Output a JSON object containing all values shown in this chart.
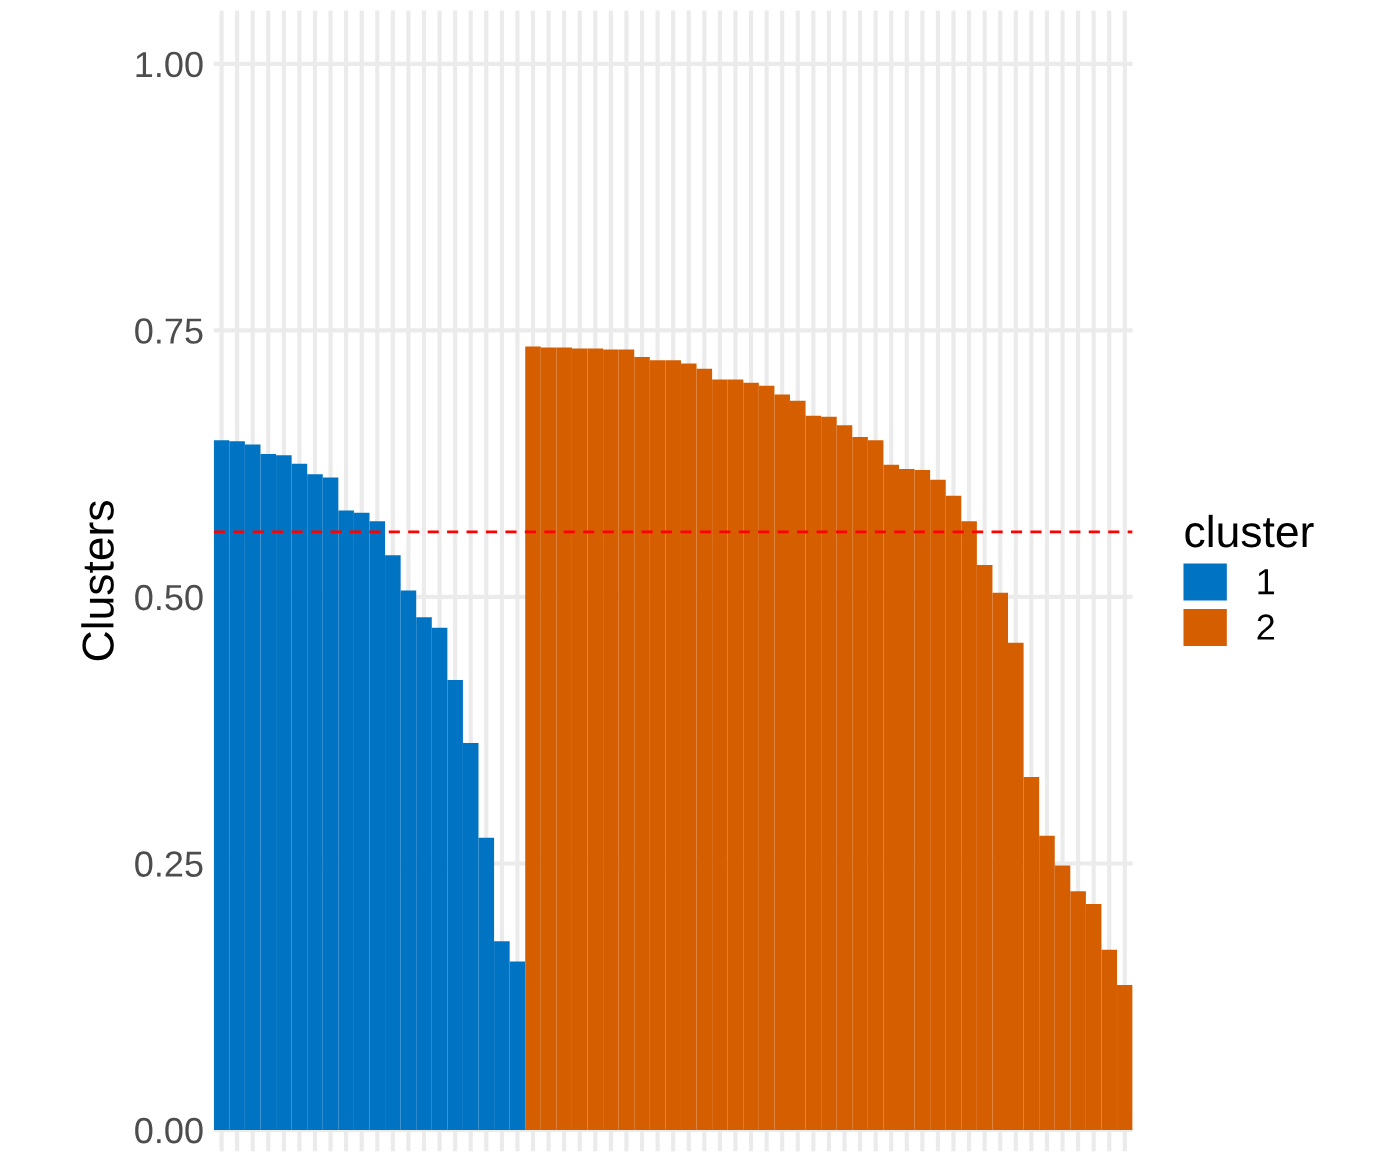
{
  "chart_data": {
    "type": "bar",
    "ylabel": "Clusters",
    "legend_title": "cluster",
    "categories": [
      null,
      null,
      null,
      null,
      null,
      null,
      null,
      null,
      null,
      null,
      null,
      null,
      null,
      null,
      null,
      null,
      null,
      null,
      null,
      null,
      null,
      null,
      null,
      null,
      null,
      null,
      null,
      null,
      null,
      null,
      null,
      null,
      null,
      null,
      null,
      null,
      null,
      null,
      null,
      null,
      null,
      null,
      null,
      null,
      null,
      null,
      null,
      null,
      null,
      null,
      null,
      null,
      null,
      null,
      null,
      null,
      null,
      null,
      null
    ],
    "series": [
      {
        "name": "1",
        "color": "#0073c2",
        "values": [
          0.647,
          0.646,
          0.643,
          0.634,
          0.633,
          0.625,
          0.615,
          0.612,
          0.581,
          0.579,
          0.571,
          0.539,
          0.506,
          0.481,
          0.471,
          0.422,
          0.363,
          0.274,
          0.177,
          0.158,
          null,
          null,
          null,
          null,
          null,
          null,
          null,
          null,
          null,
          null,
          null,
          null,
          null,
          null,
          null,
          null,
          null,
          null,
          null,
          null,
          null,
          null,
          null,
          null,
          null,
          null,
          null,
          null,
          null,
          null,
          null,
          null,
          null,
          null,
          null,
          null,
          null,
          null,
          null
        ]
      },
      {
        "name": "2",
        "color": "#d55e00",
        "values": [
          null,
          null,
          null,
          null,
          null,
          null,
          null,
          null,
          null,
          null,
          null,
          null,
          null,
          null,
          null,
          null,
          null,
          null,
          null,
          null,
          0.735,
          0.734,
          0.734,
          0.733,
          0.733,
          0.732,
          0.732,
          0.725,
          0.722,
          0.722,
          0.719,
          0.714,
          0.704,
          0.704,
          0.701,
          0.698,
          0.69,
          0.684,
          0.67,
          0.669,
          0.661,
          0.65,
          0.647,
          0.624,
          0.62,
          0.619,
          0.61,
          0.595,
          0.571,
          0.53,
          0.504,
          0.457,
          0.331,
          0.276,
          0.248,
          0.224,
          0.212,
          0.169,
          0.136
        ]
      }
    ],
    "ylim": [
      -0.02,
      1.05
    ],
    "yticks": [
      {
        "value": 0,
        "label": "0.00"
      },
      {
        "value": 0.25,
        "label": "0.25"
      },
      {
        "value": 0.5,
        "label": "0.50"
      },
      {
        "value": 0.75,
        "label": "0.75"
      },
      {
        "value": 1,
        "label": "1.00"
      }
    ],
    "ref_lines": [
      {
        "axis": "y",
        "value": 0.561,
        "color": "#ff0000",
        "line_style": "dashed"
      }
    ],
    "grid": true,
    "legend": "right",
    "tick_labels": "y"
  }
}
